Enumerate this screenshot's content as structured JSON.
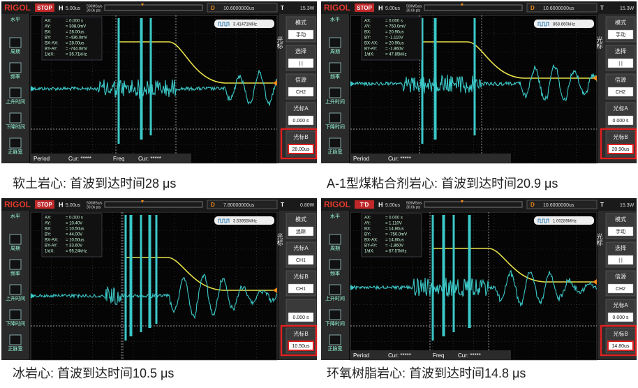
{
  "panels": [
    {
      "header": {
        "brand": "RIGOL",
        "status": "STOP",
        "timebase_label": "H",
        "timebase": "5.00us",
        "sample_rate": "500MSa/s",
        "points": "30.0k pts",
        "delay_label": "D",
        "delay": "10.6000000us",
        "trigger_label": "T",
        "trigger_level": "15.3W"
      },
      "freq_counter": "3.41471MHz",
      "readouts": [
        [
          "AX:",
          "= 0.000 s"
        ],
        [
          "AY:",
          "= 308.0mV"
        ],
        [
          "BX:",
          "= 28.00us"
        ],
        [
          "BY:",
          "= -436.0mV"
        ],
        [
          "BX-AX:",
          "= 28.00us"
        ],
        [
          "BY-AY:",
          "= -744.0mV"
        ],
        [
          "1/dX:",
          "= 35.71kHz"
        ]
      ],
      "left_menu": [
        "水平",
        "周期",
        "频率",
        "上升时间",
        "下降时间",
        "正脉宽"
      ],
      "side_label": "光标",
      "right_menu": [
        {
          "label": "模式",
          "value": "手动"
        },
        {
          "label": "选择",
          "value": "| |"
        },
        {
          "label": "信源",
          "value": "CH2"
        },
        {
          "label": "光标A",
          "value": "0.000 s"
        },
        {
          "label": "光标B",
          "value": "28.00us"
        }
      ],
      "bottom": [
        "Period",
        "Cur: *****",
        "Freq",
        "Cur: *****"
      ],
      "caption": "软土岩心: 首波到达时间28 μs"
    },
    {
      "header": {
        "brand": "RIGOL",
        "status": "STOP",
        "timebase_label": "H",
        "timebase": "5.00us",
        "sample_rate": "500MSa/s",
        "points": "30.0k pts",
        "delay_label": "D",
        "delay": "10.6000000us",
        "trigger_label": "T",
        "trigger_level": "15.3W"
      },
      "freq_counter": "868.660kHz",
      "readouts": [
        [
          "AX:",
          "= 0.000 s"
        ],
        [
          "AY:",
          "= 750.0mV"
        ],
        [
          "BX:",
          "= 20.90us"
        ],
        [
          "BY:",
          "= -1.110V"
        ],
        [
          "BX-AX:",
          "= 20.90us"
        ],
        [
          "BY-AY:",
          "= -1.860V"
        ],
        [
          "1/dX:",
          "= 47.85kHz"
        ]
      ],
      "left_menu": [
        "水平",
        "周期",
        "频率",
        "上升时间",
        "下降时间",
        "正脉宽"
      ],
      "side_label": "光标",
      "right_menu": [
        {
          "label": "模式",
          "value": "手动"
        },
        {
          "label": "选择",
          "value": "| |"
        },
        {
          "label": "信源",
          "value": "CH2"
        },
        {
          "label": "光标A",
          "value": "0.000 s"
        },
        {
          "label": "光标B",
          "value": "20.90us"
        }
      ],
      "bottom": [
        "Period",
        "Cur: *****"
      ],
      "caption": "A-1型煤粘合剂岩心: 首波到达时间20.9 μs"
    },
    {
      "header": {
        "brand": "RIGOL",
        "status": "STOP",
        "timebase_label": "H",
        "timebase": "5.00us",
        "sample_rate": "500MSa/s",
        "points": "30.0k pts",
        "delay_label": "D",
        "delay": "7.80000000us",
        "trigger_label": "T",
        "trigger_level": "0.80W"
      },
      "freq_counter": "3.53955MHz",
      "readouts": [
        [
          "AX:",
          "= 0.000 s"
        ],
        [
          "AY:",
          "= 10.40V"
        ],
        [
          "BX:",
          "= 10.50us"
        ],
        [
          "BY:",
          "= 44.00V"
        ],
        [
          "BX-AX:",
          "= 10.50us"
        ],
        [
          "BY-AY:",
          "= 33.60V"
        ],
        [
          "1/dX:",
          "= 95.24kHz"
        ]
      ],
      "left_menu": [
        "水平",
        "周期",
        "频率",
        "上升时间",
        "下降时间",
        "正脉宽"
      ],
      "side_label": "光标",
      "right_menu": [
        {
          "label": "模式",
          "value": "追踪"
        },
        {
          "label": "光标A",
          "value": "CH1"
        },
        {
          "label": "光标B",
          "value": "CH1"
        },
        {
          "value": "0.000 s"
        },
        {
          "label": "光标B",
          "value": "10.50us"
        }
      ],
      "caption": "冰岩心: 首波到达时间10.5 μs"
    },
    {
      "header": {
        "brand": "RIGOL",
        "status": "T'D",
        "timebase_label": "H",
        "timebase": "5.00us",
        "sample_rate": "500MSa/s",
        "points": "30.0k pts",
        "delay_label": "D",
        "delay": "10.6000000us",
        "trigger_label": "T",
        "trigger_level": "15.3W"
      },
      "freq_counter": "1.00289MHz",
      "readouts": [
        [
          "AX:",
          "= 0.000 s"
        ],
        [
          "AY:",
          "= 1.110V"
        ],
        [
          "BX:",
          "= 14.80us"
        ],
        [
          "BY:",
          "= -750.0mV"
        ],
        [
          "BX-AX:",
          "= 14.80us"
        ],
        [
          "BY-AY:",
          "= -1.860V"
        ],
        [
          "1/dX:",
          "= 67.57kHz"
        ]
      ],
      "left_menu": [
        "水平",
        "周期",
        "频率",
        "上升时间",
        "下降时间",
        "正脉宽"
      ],
      "side_label": "光标",
      "right_menu": [
        {
          "label": "模式",
          "value": "手动"
        },
        {
          "label": "选择",
          "value": "| |"
        },
        {
          "label": "信源",
          "value": "CH2"
        },
        {
          "label": "光标A",
          "value": "0.000 s"
        },
        {
          "label": "光标B",
          "value": "14.80us"
        }
      ],
      "bottom": [
        "Period",
        "Cur: *****",
        "Freq",
        "Cur: *****"
      ],
      "caption": "环氧树脂岩心: 首波到达时间14.8 μs"
    }
  ]
}
